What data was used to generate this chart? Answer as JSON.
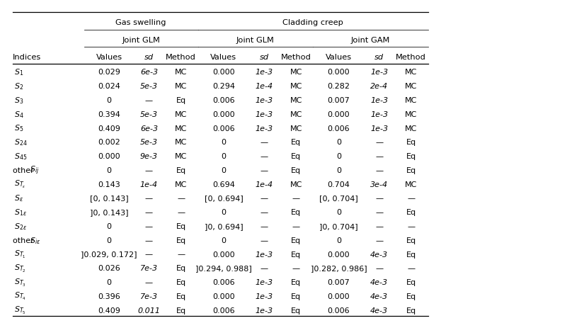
{
  "header_row1_gs": "Gas swelling",
  "header_row1_cc": "Cladding creep",
  "header_row2_glm1": "Joint GLM",
  "header_row2_glm2": "Joint GLM",
  "header_row2_gam": "Joint GAM",
  "col_labels": [
    "Indices",
    "Values",
    "sd",
    "Method",
    "Values",
    "sd",
    "Method",
    "Values",
    "sd",
    "Method"
  ],
  "rows": [
    [
      "$S_1$",
      "0.029",
      "6e-3",
      "MC",
      "0.000",
      "1e-3",
      "MC",
      "0.000",
      "1e-3",
      "MC"
    ],
    [
      "$S_2$",
      "0.024",
      "5e-3",
      "MC",
      "0.294",
      "1e-4",
      "MC",
      "0.282",
      "2e-4",
      "MC"
    ],
    [
      "$S_3$",
      "0",
      "—",
      "Eq",
      "0.006",
      "1e-3",
      "MC",
      "0.007",
      "1e-3",
      "MC"
    ],
    [
      "$S_4$",
      "0.394",
      "5e-3",
      "MC",
      "0.000",
      "1e-3",
      "MC",
      "0.000",
      "1e-3",
      "MC"
    ],
    [
      "$S_5$",
      "0.409",
      "6e-3",
      "MC",
      "0.006",
      "1e-3",
      "MC",
      "0.006",
      "1e-3",
      "MC"
    ],
    [
      "$S_{24}$",
      "0.002",
      "5e-3",
      "MC",
      "0",
      "—",
      "Eq",
      "0",
      "—",
      "Eq"
    ],
    [
      "$S_{45}$",
      "0.000",
      "9e-3",
      "MC",
      "0",
      "—",
      "Eq",
      "0",
      "—",
      "Eq"
    ],
    [
      "other $S_{ij}$",
      "0",
      "—",
      "Eq",
      "0",
      "—",
      "Eq",
      "0",
      "—",
      "Eq"
    ],
    [
      "$S_{T_\\varepsilon}$",
      "0.143",
      "1e-4",
      "MC",
      "0.694",
      "1e-4",
      "MC",
      "0.704",
      "3e-4",
      "MC"
    ],
    [
      "$S_\\varepsilon$",
      "[0, 0.143]",
      "—",
      "—",
      "[0, 0.694]",
      "—",
      "—",
      "[0, 0.704]",
      "—",
      "—"
    ],
    [
      "$S_{1\\varepsilon}$",
      "]0, 0.143]",
      "—",
      "—",
      "0",
      "—",
      "Eq",
      "0",
      "—",
      "Eq"
    ],
    [
      "$S_{2\\varepsilon}$",
      "0",
      "—",
      "Eq",
      "]0, 0.694]",
      "—",
      "—",
      "]0, 0.704]",
      "—",
      "—"
    ],
    [
      "other $S_{i\\varepsilon}$",
      "0",
      "—",
      "Eq",
      "0",
      "—",
      "Eq",
      "0",
      "—",
      "Eq"
    ],
    [
      "$S_{T_1}$",
      "]0.029, 0.172]",
      "—",
      "—",
      "0.000",
      "1e-3",
      "Eq",
      "0.000",
      "4e-3",
      "Eq"
    ],
    [
      "$S_{T_2}$",
      "0.026",
      "7e-3",
      "Eq",
      "]0.294, 0.988]",
      "—",
      "—",
      "]0.282, 0.986]",
      "—",
      "—"
    ],
    [
      "$S_{T_3}$",
      "0",
      "—",
      "Eq",
      "0.006",
      "1e-3",
      "Eq",
      "0.007",
      "4e-3",
      "Eq"
    ],
    [
      "$S_{T_4}$",
      "0.396",
      "7e-3",
      "Eq",
      "0.000",
      "1e-3",
      "Eq",
      "0.000",
      "4e-3",
      "Eq"
    ],
    [
      "$S_{T_5}$",
      "0.409",
      "0.011",
      "Eq",
      "0.006",
      "1e-3",
      "Eq",
      "0.006",
      "4e-3",
      "Eq"
    ]
  ],
  "bg_color": "#ffffff",
  "text_color": "#000000",
  "line_color": "#000000",
  "fs": 8.0,
  "fs_header": 8.2
}
